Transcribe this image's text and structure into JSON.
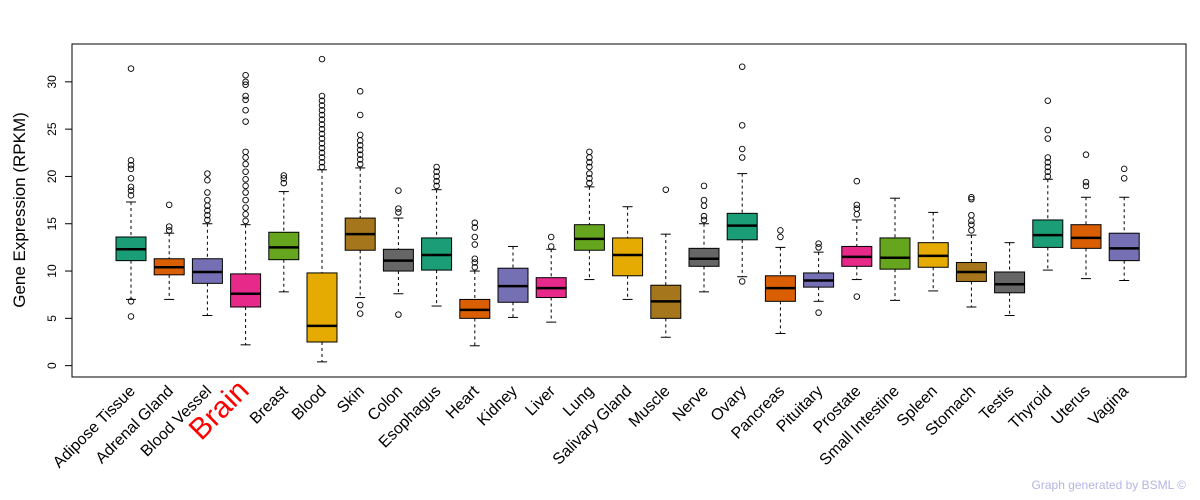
{
  "chart_data": {
    "type": "boxplot",
    "title": "",
    "xlabel": "",
    "ylabel": "Gene Expression (RPKM)",
    "ylim": [
      -1.2,
      34
    ],
    "yticks": [
      0,
      5,
      10,
      15,
      20,
      25,
      30
    ],
    "highlight_category": "Brain",
    "highlight_color": "#ff0000",
    "categories": [
      "Adipose Tissue",
      "Adrenal Gland",
      "Blood Vessel",
      "Brain",
      "Breast",
      "Blood",
      "Skin",
      "Colon",
      "Esophagus",
      "Heart",
      "Kidney",
      "Liver",
      "Lung",
      "Salivary Gland",
      "Muscle",
      "Nerve",
      "Ovary",
      "Pancreas",
      "Pituitary",
      "Prostate",
      "Small Intestine",
      "Spleen",
      "Stomach",
      "Testis",
      "Thyroid",
      "Uterus",
      "Vagina"
    ],
    "colors": [
      "#1b9e77",
      "#d95f02",
      "#7570b3",
      "#e7298a",
      "#66a61e",
      "#e6ab02",
      "#a6761d",
      "#666666",
      "#1b9e77",
      "#d95f02",
      "#7570b3",
      "#e7298a",
      "#66a61e",
      "#e6ab02",
      "#a6761d",
      "#666666",
      "#1b9e77",
      "#d95f02",
      "#7570b3",
      "#e7298a",
      "#66a61e",
      "#e6ab02",
      "#a6761d",
      "#666666",
      "#1b9e77",
      "#d95f02",
      "#7570b3"
    ],
    "boxes": [
      {
        "whisker_low": 7.0,
        "q1": 11.1,
        "median": 12.3,
        "q3": 13.6,
        "whisker_high": 17.3,
        "outliers": [
          5.2,
          6.8,
          18.0,
          18.5,
          18.9,
          19.8,
          20.8,
          21.2,
          21.7,
          31.4
        ]
      },
      {
        "whisker_low": 7.0,
        "q1": 9.6,
        "median": 10.4,
        "q3": 11.3,
        "whisker_high": 14.0,
        "outliers": [
          14.3,
          14.7,
          17.0
        ]
      },
      {
        "whisker_low": 5.3,
        "q1": 8.7,
        "median": 9.9,
        "q3": 11.3,
        "whisker_high": 15.0,
        "outliers": [
          15.4,
          15.9,
          16.4,
          16.9,
          17.5,
          18.3,
          19.6,
          20.3
        ]
      },
      {
        "whisker_low": 2.2,
        "q1": 6.2,
        "median": 7.6,
        "q3": 9.7,
        "whisker_high": 14.9,
        "outliers": [
          15.3,
          16.0,
          16.7,
          17.5,
          18.3,
          19.0,
          19.7,
          20.5,
          21.3,
          22.0,
          22.6,
          25.8,
          27.0,
          28.1,
          28.5,
          29.7,
          30.0,
          30.7
        ]
      },
      {
        "whisker_low": 7.8,
        "q1": 11.2,
        "median": 12.5,
        "q3": 14.1,
        "whisker_high": 18.4,
        "outliers": [
          19.3,
          19.8,
          20.1
        ]
      },
      {
        "whisker_low": 0.4,
        "q1": 2.5,
        "median": 4.2,
        "q3": 9.8,
        "whisker_high": 20.7,
        "outliers": [
          21.0,
          21.5,
          22.0,
          22.5,
          23.0,
          23.5,
          24.0,
          24.5,
          25.0,
          25.5,
          26.0,
          26.5,
          27.0,
          27.5,
          28.0,
          28.5,
          32.4
        ]
      },
      {
        "whisker_low": 7.2,
        "q1": 12.2,
        "median": 13.9,
        "q3": 15.6,
        "whisker_high": 20.9,
        "outliers": [
          5.5,
          6.4,
          21.3,
          21.8,
          22.3,
          22.8,
          23.3,
          23.8,
          24.4,
          26.5,
          29.0
        ]
      },
      {
        "whisker_low": 7.6,
        "q1": 10.0,
        "median": 11.1,
        "q3": 12.3,
        "whisker_high": 15.6,
        "outliers": [
          5.4,
          16.2,
          16.6,
          18.5
        ]
      },
      {
        "whisker_low": 6.3,
        "q1": 10.1,
        "median": 11.7,
        "q3": 13.5,
        "whisker_high": 18.6,
        "outliers": [
          19.0,
          19.5,
          20.0,
          20.5,
          21.0
        ]
      },
      {
        "whisker_low": 2.1,
        "q1": 5.0,
        "median": 5.9,
        "q3": 7.0,
        "whisker_high": 10.0,
        "outliers": [
          10.4,
          10.9,
          11.3,
          12.8,
          13.6,
          14.6,
          15.1
        ]
      },
      {
        "whisker_low": 5.1,
        "q1": 6.7,
        "median": 8.4,
        "q3": 10.3,
        "whisker_high": 12.6,
        "outliers": []
      },
      {
        "whisker_low": 4.6,
        "q1": 7.2,
        "median": 8.2,
        "q3": 9.3,
        "whisker_high": 12.3,
        "outliers": [
          12.6,
          13.6
        ]
      },
      {
        "whisker_low": 9.1,
        "q1": 12.2,
        "median": 13.4,
        "q3": 14.9,
        "whisker_high": 18.9,
        "outliers": [
          19.3,
          19.8,
          20.3,
          21.0,
          21.5,
          22.0,
          22.6
        ]
      },
      {
        "whisker_low": 7.0,
        "q1": 9.5,
        "median": 11.7,
        "q3": 13.5,
        "whisker_high": 16.8,
        "outliers": []
      },
      {
        "whisker_low": 3.0,
        "q1": 5.0,
        "median": 6.8,
        "q3": 8.5,
        "whisker_high": 13.9,
        "outliers": [
          18.6
        ]
      },
      {
        "whisker_low": 7.8,
        "q1": 10.5,
        "median": 11.3,
        "q3": 12.4,
        "whisker_high": 15.0,
        "outliers": [
          15.4,
          15.8,
          16.9,
          17.5,
          19.0
        ]
      },
      {
        "whisker_low": 9.4,
        "q1": 13.3,
        "median": 14.8,
        "q3": 16.1,
        "whisker_high": 20.3,
        "outliers": [
          8.9,
          22.0,
          22.9,
          25.4,
          31.6
        ]
      },
      {
        "whisker_low": 3.4,
        "q1": 6.8,
        "median": 8.2,
        "q3": 9.5,
        "whisker_high": 12.5,
        "outliers": [
          13.6,
          14.3
        ]
      },
      {
        "whisker_low": 6.8,
        "q1": 8.3,
        "median": 9.0,
        "q3": 9.8,
        "whisker_high": 12.0,
        "outliers": [
          5.6,
          12.5,
          12.9
        ]
      },
      {
        "whisker_low": 9.1,
        "q1": 10.5,
        "median": 11.5,
        "q3": 12.6,
        "whisker_high": 15.4,
        "outliers": [
          7.3,
          16.0,
          16.6,
          17.0,
          19.5
        ]
      },
      {
        "whisker_low": 6.9,
        "q1": 10.2,
        "median": 11.4,
        "q3": 13.5,
        "whisker_high": 17.7,
        "outliers": []
      },
      {
        "whisker_low": 7.9,
        "q1": 10.4,
        "median": 11.6,
        "q3": 13.0,
        "whisker_high": 16.2,
        "outliers": []
      },
      {
        "whisker_low": 6.2,
        "q1": 8.9,
        "median": 9.9,
        "q3": 10.9,
        "whisker_high": 13.8,
        "outliers": [
          14.3,
          14.9,
          15.3,
          15.9,
          17.6,
          17.8
        ]
      },
      {
        "whisker_low": 5.3,
        "q1": 7.7,
        "median": 8.6,
        "q3": 9.9,
        "whisker_high": 13.0,
        "outliers": []
      },
      {
        "whisker_low": 10.1,
        "q1": 12.5,
        "median": 13.8,
        "q3": 15.4,
        "whisker_high": 19.7,
        "outliers": [
          20.0,
          20.5,
          21.0,
          21.5,
          22.0,
          24.0,
          24.9,
          28.0
        ]
      },
      {
        "whisker_low": 9.2,
        "q1": 12.4,
        "median": 13.5,
        "q3": 14.9,
        "whisker_high": 17.8,
        "outliers": [
          19.0,
          19.4,
          22.3
        ]
      },
      {
        "whisker_low": 9.0,
        "q1": 11.1,
        "median": 12.4,
        "q3": 14.0,
        "whisker_high": 17.8,
        "outliers": [
          19.8,
          20.8
        ]
      }
    ]
  },
  "credit": "Graph generated by BSML ©"
}
